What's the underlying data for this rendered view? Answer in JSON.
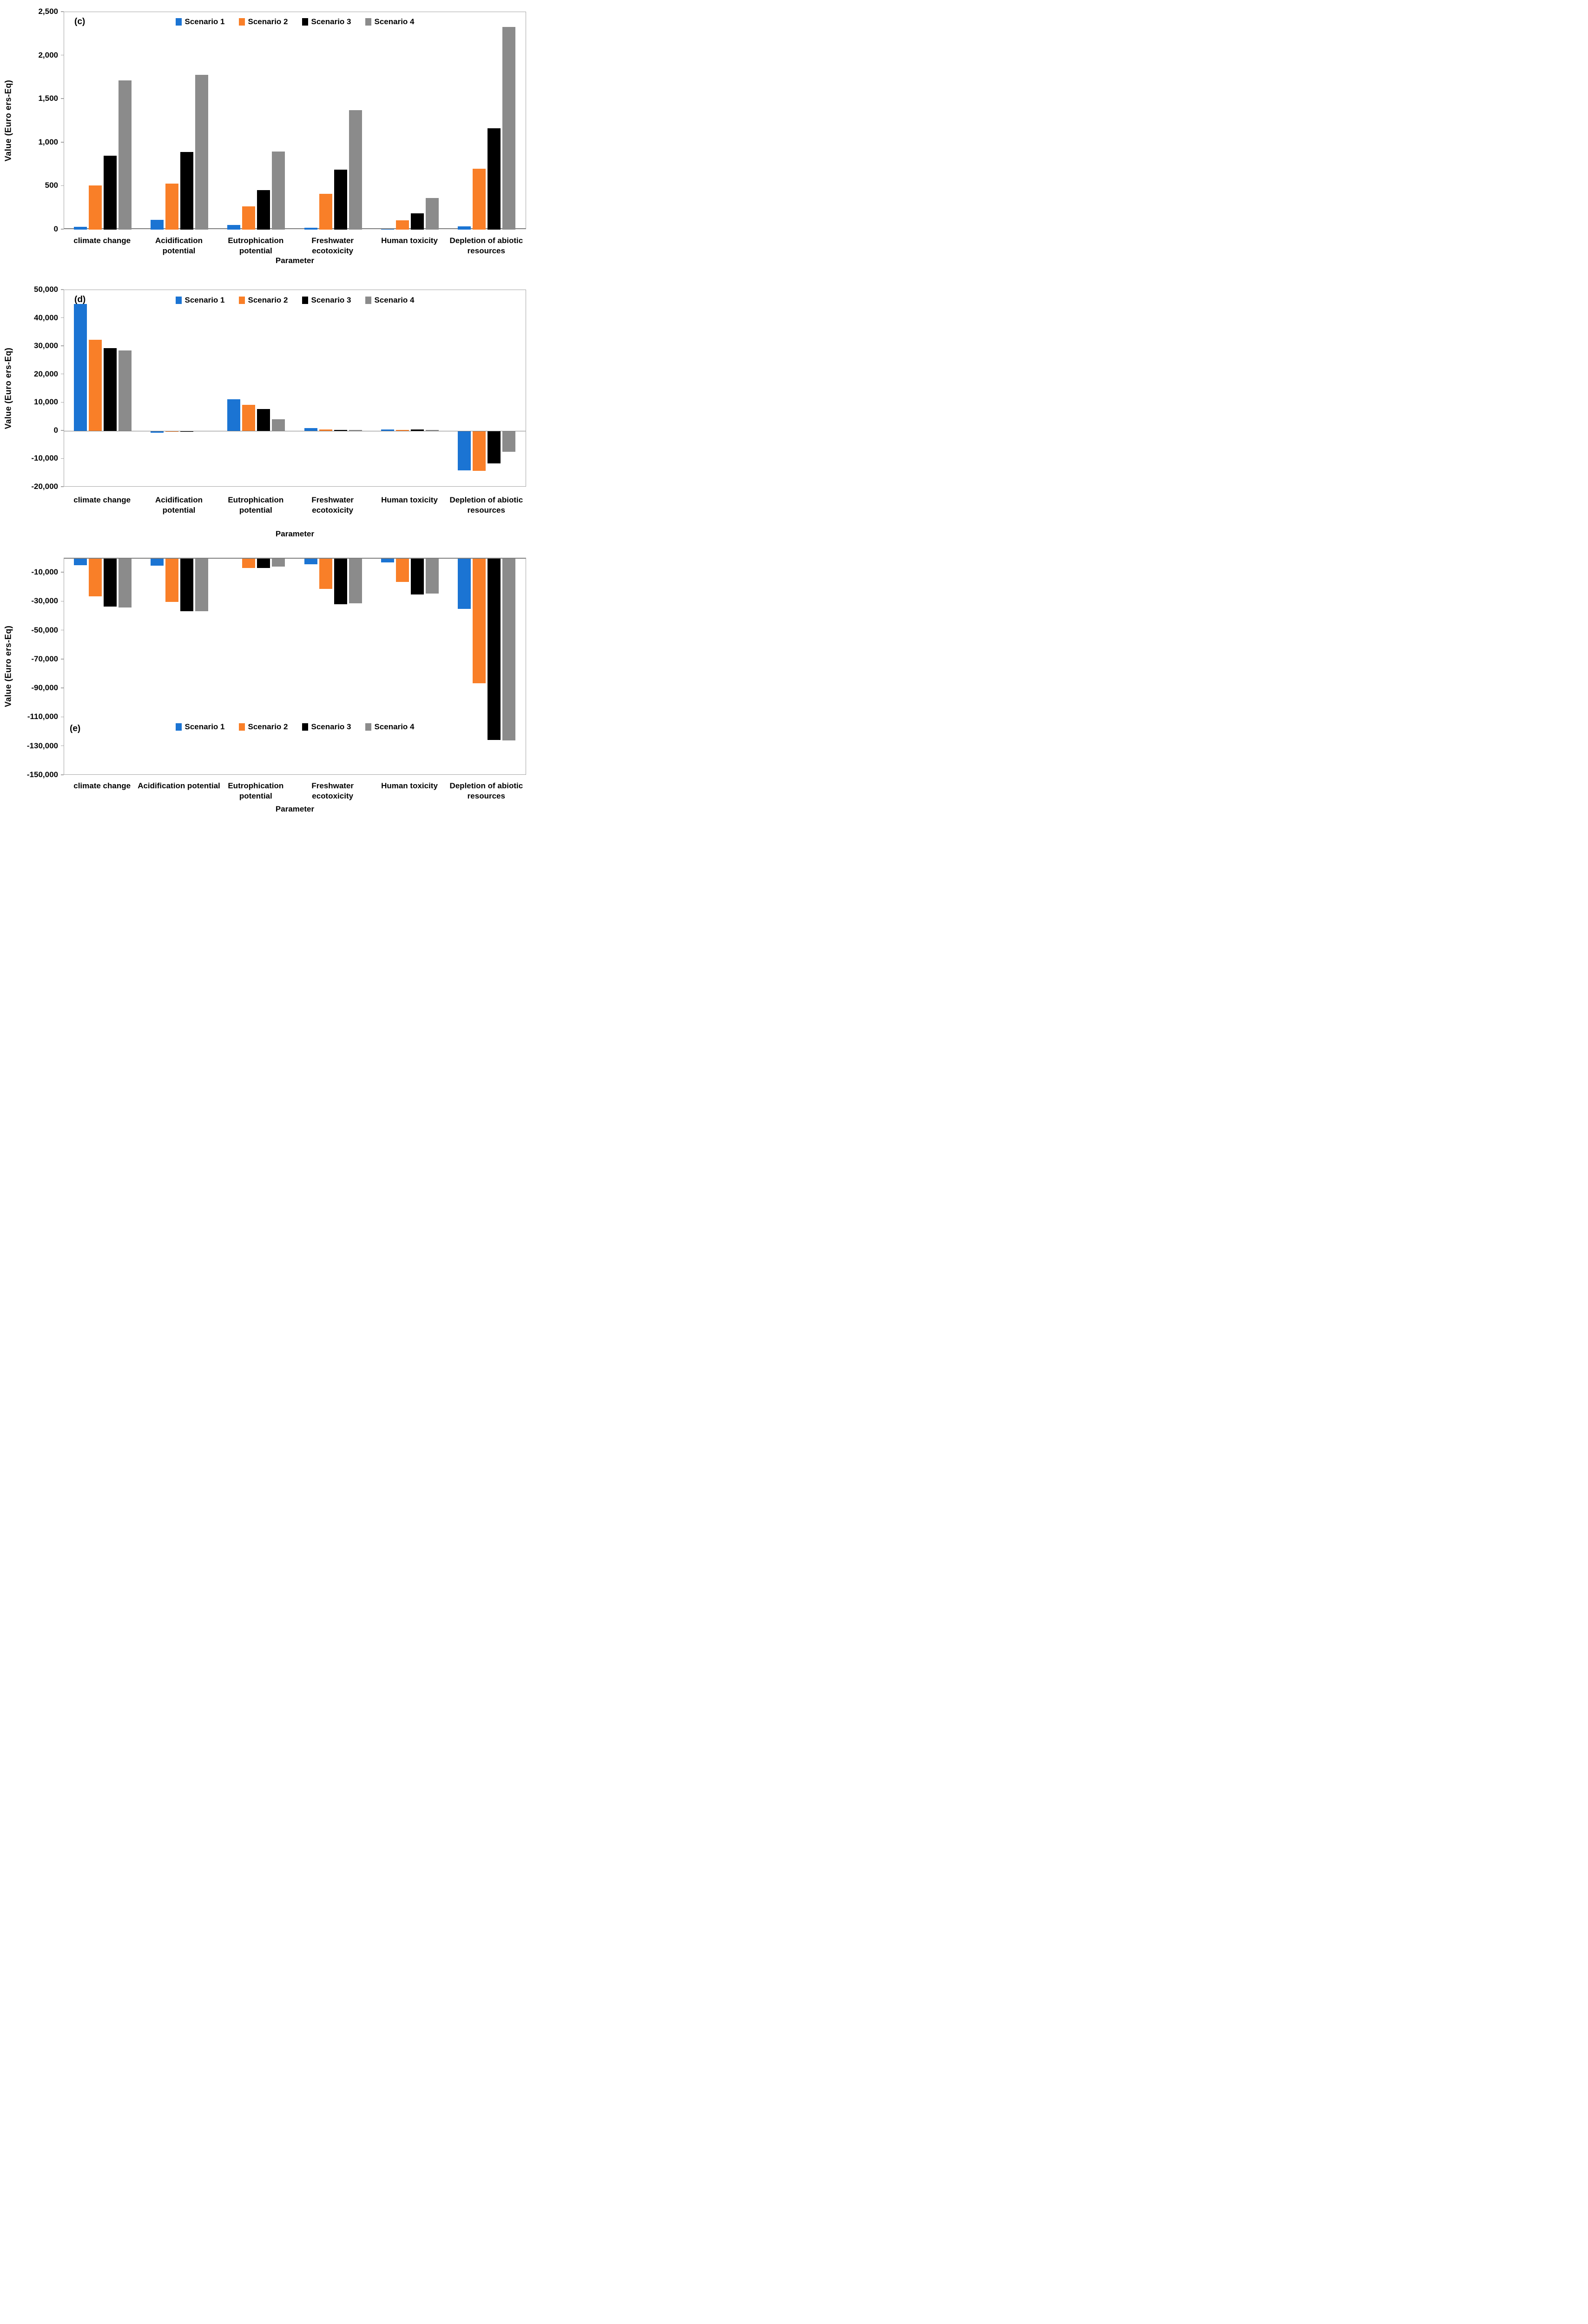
{
  "colors": {
    "scenario1": "#1b74d3",
    "scenario2": "#f97f28",
    "scenario3": "#000000",
    "scenario4": "#8b8b8b",
    "plot_border": "#a6a6a6",
    "axis_emphasis": "#7f7f7f",
    "text": "#000000"
  },
  "chart_data": [
    {
      "id": "c",
      "type": "bar",
      "panel_label": "(c)",
      "ylabel": "Value (Euro ers-Eq)",
      "xlabel": "Parameter",
      "legend_position": "top",
      "grid": false,
      "ylim": [
        0,
        2500
      ],
      "yticks": [
        {
          "value": 2500,
          "label": "2,500"
        },
        {
          "value": 2000,
          "label": "2,000"
        },
        {
          "value": 1500,
          "label": "1,500"
        },
        {
          "value": 1000,
          "label": "1,000"
        },
        {
          "value": 500,
          "label": "500"
        },
        {
          "value": 0,
          "label": "0"
        }
      ],
      "categories": [
        "climate change",
        "Acidification potential",
        "Eutrophication potential",
        "Freshwater ecotoxicity",
        "Human toxicity",
        "Depletion of abiotic resources"
      ],
      "category_lines": [
        [
          "climate change"
        ],
        [
          "Acidification",
          "potential"
        ],
        [
          "Eutrophication",
          "potential"
        ],
        [
          "Freshwater",
          "ecotoxicity"
        ],
        [
          "Human toxicity"
        ],
        [
          "Depletion of abiotic",
          "resources"
        ]
      ],
      "series": [
        {
          "name": "Scenario 1",
          "values": [
            30,
            110,
            55,
            20,
            5,
            40
          ]
        },
        {
          "name": "Scenario 2",
          "values": [
            505,
            530,
            268,
            410,
            105,
            700
          ]
        },
        {
          "name": "Scenario 3",
          "values": [
            850,
            890,
            455,
            690,
            185,
            1165
          ]
        },
        {
          "name": "Scenario 4",
          "values": [
            1715,
            1780,
            900,
            1375,
            365,
            2330
          ]
        }
      ]
    },
    {
      "id": "d",
      "type": "bar",
      "panel_label": "(d)",
      "ylabel": "Value (Euro ers-Eq)",
      "xlabel": "Parameter",
      "legend_position": "top",
      "grid": false,
      "ylim": [
        -20000,
        50000
      ],
      "yticks": [
        {
          "value": 50000,
          "label": "50,000"
        },
        {
          "value": 40000,
          "label": "40,000"
        },
        {
          "value": 30000,
          "label": "30,000"
        },
        {
          "value": 20000,
          "label": "20,000"
        },
        {
          "value": 10000,
          "label": "10,000"
        },
        {
          "value": 0,
          "label": "0"
        },
        {
          "value": -10000,
          "label": "-10,000"
        },
        {
          "value": -20000,
          "label": "-20,000"
        }
      ],
      "categories": [
        "climate change",
        "Acidification potential",
        "Eutrophication potential",
        "Freshwater ecotoxicity",
        "Human toxicity",
        "Depletion of abiotic resources"
      ],
      "category_lines": [
        [
          "climate change"
        ],
        [
          "Acidification",
          "potential"
        ],
        [
          "Eutrophication",
          "potential"
        ],
        [
          "Freshwater",
          "ecotoxicity"
        ],
        [
          "Human toxicity"
        ],
        [
          "Depletion of abiotic",
          "resources"
        ]
      ],
      "series": [
        {
          "name": "Scenario 1",
          "values": [
            45000,
            -700,
            11200,
            900,
            500,
            -14000
          ]
        },
        {
          "name": "Scenario 2",
          "values": [
            32300,
            -400,
            9200,
            550,
            380,
            -14300
          ]
        },
        {
          "name": "Scenario 3",
          "values": [
            29400,
            -300,
            7800,
            250,
            420,
            -11600
          ]
        },
        {
          "name": "Scenario 4",
          "values": [
            28500,
            -200,
            4100,
            280,
            300,
            -7400
          ]
        }
      ]
    },
    {
      "id": "e",
      "type": "bar",
      "panel_label": "(e)",
      "ylabel": "Value (Euro ers-Eq)",
      "xlabel": "Parameter",
      "legend_position": "bottom",
      "grid": false,
      "ylim": [
        -150000,
        0
      ],
      "yticks": [
        {
          "value": -10000,
          "label": "-10,000"
        },
        {
          "value": -30000,
          "label": "-30,000"
        },
        {
          "value": -50000,
          "label": "-50,000"
        },
        {
          "value": -70000,
          "label": "-70,000"
        },
        {
          "value": -90000,
          "label": "-90,000"
        },
        {
          "value": -110000,
          "label": "-110,000"
        },
        {
          "value": -130000,
          "label": "-130,000"
        },
        {
          "value": -150000,
          "label": "-150,000"
        }
      ],
      "categories": [
        "climate change",
        "Acidification potential",
        "Eutrophication potential",
        "Freshwater ecotoxicity",
        "Human toxicity",
        "Depletion of abiotic resources"
      ],
      "category_lines": [
        [
          "climate change"
        ],
        [
          "Acidification potential"
        ],
        [
          "Eutrophication",
          "potential"
        ],
        [
          "Freshwater",
          "ecotoxicity"
        ],
        [
          "Human toxicity"
        ],
        [
          "Depletion of abiotic",
          "resources"
        ]
      ],
      "series": [
        {
          "name": "Scenario 1",
          "values": [
            -4500,
            -4800,
            0,
            -3800,
            -2500,
            -34800
          ]
        },
        {
          "name": "Scenario 2",
          "values": [
            -26000,
            -29800,
            -6400,
            -21000,
            -16000,
            -86000
          ]
        },
        {
          "name": "Scenario 3",
          "values": [
            -33200,
            -36200,
            -6500,
            -31600,
            -24700,
            -125200
          ]
        },
        {
          "name": "Scenario 4",
          "values": [
            -33800,
            -36400,
            -5400,
            -30700,
            -24200,
            -125500
          ]
        }
      ]
    }
  ]
}
